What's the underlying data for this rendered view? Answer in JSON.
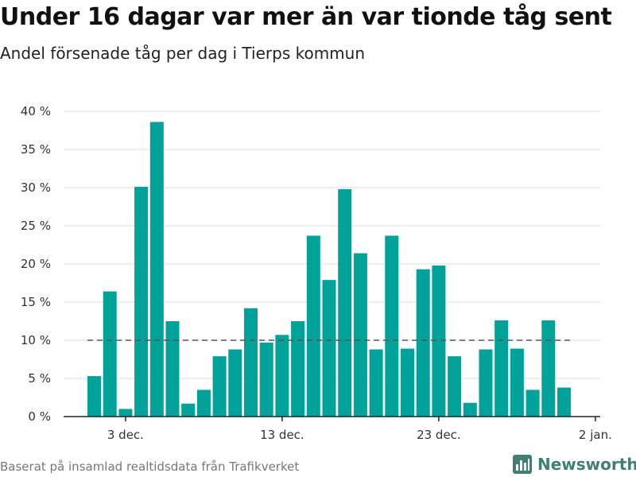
{
  "header": {
    "title": "Under 16 dagar var mer än var tionde tåg sent",
    "subtitle": "Andel försenade tåg per dag i Tierps kommun"
  },
  "footer": {
    "source": "Baserat på insamlad realtidsdata från Trafikverket",
    "brand": "Newsworthy"
  },
  "colors": {
    "bar": "#00a29a",
    "reference_line": "#555555",
    "grid": "#dddddd",
    "brand": "#3f7f74"
  },
  "chart_data": {
    "type": "bar",
    "title": "Under 16 dagar var mer än var tionde tåg sent",
    "subtitle": "Andel försenade tåg per dag i Tierps kommun",
    "xlabel": "",
    "ylabel": "",
    "x_dates": [
      "Dec 1",
      "Dec 2",
      "Dec 3",
      "Dec 4",
      "Dec 5",
      "Dec 6",
      "Dec 7",
      "Dec 8",
      "Dec 9",
      "Dec 10",
      "Dec 11",
      "Dec 12",
      "Dec 13",
      "Dec 14",
      "Dec 15",
      "Dec 16",
      "Dec 17",
      "Dec 18",
      "Dec 19",
      "Dec 20",
      "Dec 21",
      "Dec 22",
      "Dec 23",
      "Dec 24",
      "Dec 25",
      "Dec 26",
      "Dec 27",
      "Dec 28",
      "Dec 29",
      "Dec 30",
      "Dec 31"
    ],
    "values": [
      5.3,
      16.4,
      1.0,
      30.1,
      38.6,
      12.5,
      1.7,
      3.5,
      7.9,
      8.8,
      14.2,
      9.7,
      10.7,
      12.5,
      23.7,
      17.9,
      29.8,
      21.4,
      8.8,
      23.7,
      8.9,
      19.3,
      19.8,
      7.9,
      1.8,
      8.8,
      12.6,
      8.9,
      3.5,
      12.6,
      3.8
    ],
    "ylim": [
      0,
      40
    ],
    "yticks": [
      0,
      5,
      10,
      15,
      20,
      25,
      30,
      35,
      40
    ],
    "ytick_labels": [
      "0 %",
      "5 %",
      "10 %",
      "15 %",
      "20 %",
      "25 %",
      "30 %",
      "35 %",
      "40 %"
    ],
    "xtick_labels": [
      "3 dec.",
      "13 dec.",
      "23 dec.",
      "2 jan."
    ],
    "reference_line": 10,
    "grid": true,
    "legend": "none"
  }
}
